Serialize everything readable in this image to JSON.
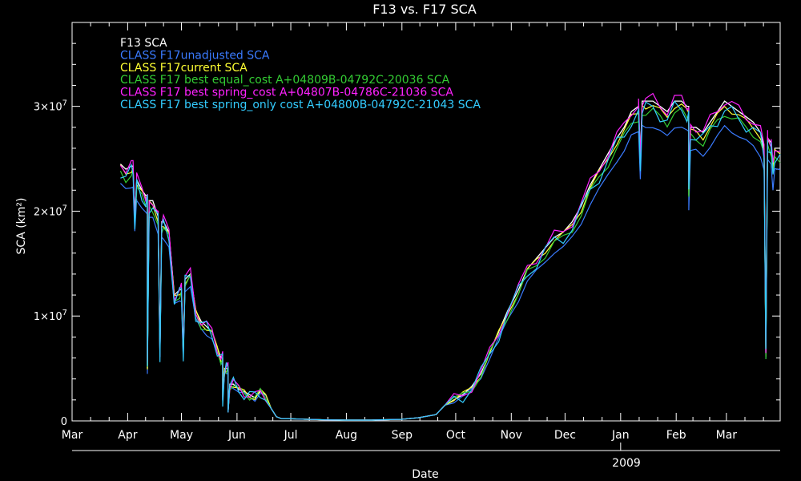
{
  "chart_data": {
    "type": "line",
    "title": "F13 vs. F17 SCA",
    "xlabel": "Date",
    "ylabel": "SCA (km²)",
    "year_label": "2009",
    "x_tick_labels": [
      "Mar",
      "Apr",
      "May",
      "Jun",
      "Jul",
      "Aug",
      "Sep",
      "Oct",
      "Nov",
      "Dec",
      "Jan",
      "Feb",
      "Mar"
    ],
    "y_tick_labels": [
      {
        "value": 0,
        "base": "0",
        "exp": ""
      },
      {
        "value": 10000000,
        "base": "1×10",
        "exp": "7"
      },
      {
        "value": 20000000,
        "base": "2×10",
        "exp": "7"
      },
      {
        "value": 30000000,
        "base": "3×10",
        "exp": "7"
      }
    ],
    "ylim": [
      0,
      38000000
    ],
    "x_start": "2008-03-01",
    "x_end": "2009-03-31",
    "background": "#000000",
    "grid": false,
    "legend_position": "top-left",
    "series": [
      {
        "name": "F13 SCA",
        "color": "#ffffff",
        "factor": 1.0
      },
      {
        "name": "CLASS F17unadjusted  SCA",
        "color": "#3a7bff",
        "factor": 0.92
      },
      {
        "name": "CLASS F17current  SCA",
        "color": "#ffff33",
        "factor": 0.985
      },
      {
        "name": "CLASS F17 best equal_cost A+04809B-04792C-20036 SCA",
        "color": "#33cc33",
        "factor": 0.965
      },
      {
        "name": "CLASS F17 best spring_cost A+04807B-04786C-21036 SCA",
        "color": "#ff22ff",
        "factor": 1.005
      },
      {
        "name": "CLASS F17 best spring_only cost A+04800B-04792C-21043 SCA",
        "color": "#33ccff",
        "factor": 0.975
      }
    ],
    "base_curve": {
      "x": [
        "2008-03-28",
        "2008-03-31",
        "2008-04-03",
        "2008-04-06",
        "2008-04-09",
        "2008-04-12",
        "2008-04-15",
        "2008-04-18",
        "2008-04-21",
        "2008-04-24",
        "2008-04-27",
        "2008-04-30",
        "2008-05-03",
        "2008-05-06",
        "2008-05-09",
        "2008-05-12",
        "2008-05-15",
        "2008-05-18",
        "2008-05-21",
        "2008-05-24",
        "2008-05-27",
        "2008-05-30",
        "2008-06-02",
        "2008-06-05",
        "2008-06-08",
        "2008-06-11",
        "2008-06-14",
        "2008-06-17",
        "2008-06-20",
        "2008-06-23",
        "2008-06-26",
        "2008-07-01",
        "2008-07-10",
        "2008-07-20",
        "2008-08-01",
        "2008-08-15",
        "2008-09-01",
        "2008-09-10",
        "2008-09-20",
        "2008-09-25",
        "2008-09-30",
        "2008-10-05",
        "2008-10-10",
        "2008-10-15",
        "2008-10-20",
        "2008-10-25",
        "2008-10-30",
        "2008-11-05",
        "2008-11-10",
        "2008-11-15",
        "2008-11-20",
        "2008-11-25",
        "2008-11-30",
        "2008-12-05",
        "2008-12-10",
        "2008-12-15",
        "2008-12-20",
        "2008-12-25",
        "2008-12-30",
        "2009-01-03",
        "2009-01-07",
        "2009-01-11",
        "2009-01-15",
        "2009-01-19",
        "2009-01-23",
        "2009-01-27",
        "2009-01-31",
        "2009-02-04",
        "2009-02-08",
        "2009-02-12",
        "2009-02-16",
        "2009-02-20",
        "2009-02-24",
        "2009-02-28",
        "2009-03-04",
        "2009-03-08",
        "2009-03-12",
        "2009-03-16",
        "2009-03-20",
        "2009-03-22",
        "2009-03-24",
        "2009-03-26",
        "2009-03-31"
      ],
      "y": [
        24500000,
        24000000,
        24300000,
        23000000,
        22000000,
        21500000,
        21000000,
        19500000,
        19000000,
        18000000,
        12000000,
        12500000,
        13500000,
        14000000,
        10500000,
        9500000,
        9000000,
        8500000,
        7000000,
        6000000,
        5000000,
        3500000,
        3000000,
        2800000,
        2500000,
        2200000,
        2800000,
        2500000,
        1200000,
        400000,
        200000,
        200000,
        150000,
        100000,
        80000,
        80000,
        150000,
        300000,
        600000,
        1500000,
        2000000,
        2500000,
        3300000,
        4500000,
        6500000,
        8500000,
        10500000,
        12500000,
        14500000,
        15500000,
        16500000,
        17500000,
        18000000,
        19000000,
        20500000,
        22500000,
        24000000,
        25500000,
        27000000,
        28000000,
        29500000,
        30000000,
        30500000,
        30500000,
        30000000,
        29500000,
        30500000,
        30500000,
        30000000,
        28000000,
        27500000,
        28500000,
        29500000,
        30500000,
        30000000,
        29500000,
        29000000,
        28500000,
        27500000,
        26000000,
        27000000,
        26500000,
        26000000
      ]
    },
    "spikes": [
      {
        "x": "2008-04-05",
        "y": 19500000
      },
      {
        "x": "2008-04-12",
        "y": 5000000
      },
      {
        "x": "2008-04-19",
        "y": 6500000
      },
      {
        "x": "2008-05-02",
        "y": 6500000
      },
      {
        "x": "2008-05-24",
        "y": 2000000
      },
      {
        "x": "2008-05-27",
        "y": 800000
      },
      {
        "x": "2009-01-12",
        "y": 25000000
      },
      {
        "x": "2009-02-08",
        "y": 22000000
      },
      {
        "x": "2009-03-23",
        "y": 6500000
      },
      {
        "x": "2009-03-27",
        "y": 24000000
      }
    ]
  }
}
